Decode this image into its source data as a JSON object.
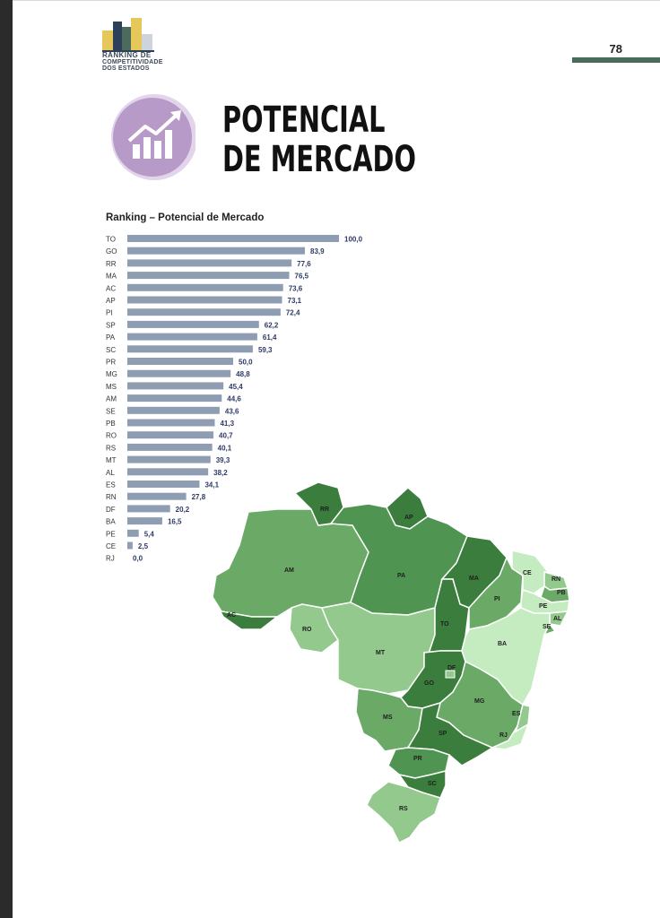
{
  "header": {
    "logo_lines": [
      "RANKING DE",
      "COMPETITIVIDADE",
      "DOS ESTADOS"
    ],
    "page_number": "78"
  },
  "section": {
    "title_lines": [
      "POTENCIAL",
      "DE MERCADO"
    ],
    "icon": "growth-chart-icon",
    "badge_color": "#b79ac7"
  },
  "chart_data": {
    "type": "bar",
    "orientation": "horizontal",
    "title": "Ranking – Potencial de Mercado",
    "categories": [
      "TO",
      "GO",
      "RR",
      "MA",
      "AC",
      "AP",
      "PI",
      "SP",
      "PA",
      "SC",
      "PR",
      "MG",
      "MS",
      "AM",
      "SE",
      "PB",
      "RO",
      "RS",
      "MT",
      "AL",
      "ES",
      "RN",
      "DF",
      "BA",
      "PE",
      "CE",
      "RJ"
    ],
    "values": [
      100.0,
      83.9,
      77.6,
      76.5,
      73.6,
      73.1,
      72.4,
      62.2,
      61.4,
      59.3,
      50.0,
      48.8,
      45.4,
      44.6,
      43.6,
      41.3,
      40.7,
      40.1,
      39.3,
      38.2,
      34.1,
      27.8,
      20.2,
      16.5,
      5.4,
      2.5,
      0.0
    ],
    "value_labels": [
      "100,0",
      "83,9",
      "77,6",
      "76,5",
      "73,6",
      "73,1",
      "72,4",
      "62,2",
      "61,4",
      "59,3",
      "50,0",
      "48,8",
      "45,4",
      "44,6",
      "43,6",
      "41,3",
      "40,7",
      "40,1",
      "39,3",
      "38,2",
      "34,1",
      "27,8",
      "20,2",
      "16,5",
      "5,4",
      "2,5",
      "0,0"
    ],
    "xlim": [
      0,
      100
    ],
    "bar_color": "#8f9db3",
    "label_color": "#2f3b66",
    "grid": false
  },
  "map": {
    "state_labels": [
      "RR",
      "AP",
      "AM",
      "PA",
      "MA",
      "CE",
      "RN",
      "PB",
      "PE",
      "AL",
      "SE",
      "PI",
      "TO",
      "AC",
      "RO",
      "MT",
      "BA",
      "DF",
      "GO",
      "MG",
      "MS",
      "ES",
      "SP",
      "RJ",
      "PR",
      "SC",
      "RS"
    ],
    "colors": {
      "darkest": "#3a7d3c",
      "dark": "#4f9450",
      "medium": "#6aaa66",
      "light": "#93c98c",
      "lightest": "#c5ebc0"
    }
  }
}
